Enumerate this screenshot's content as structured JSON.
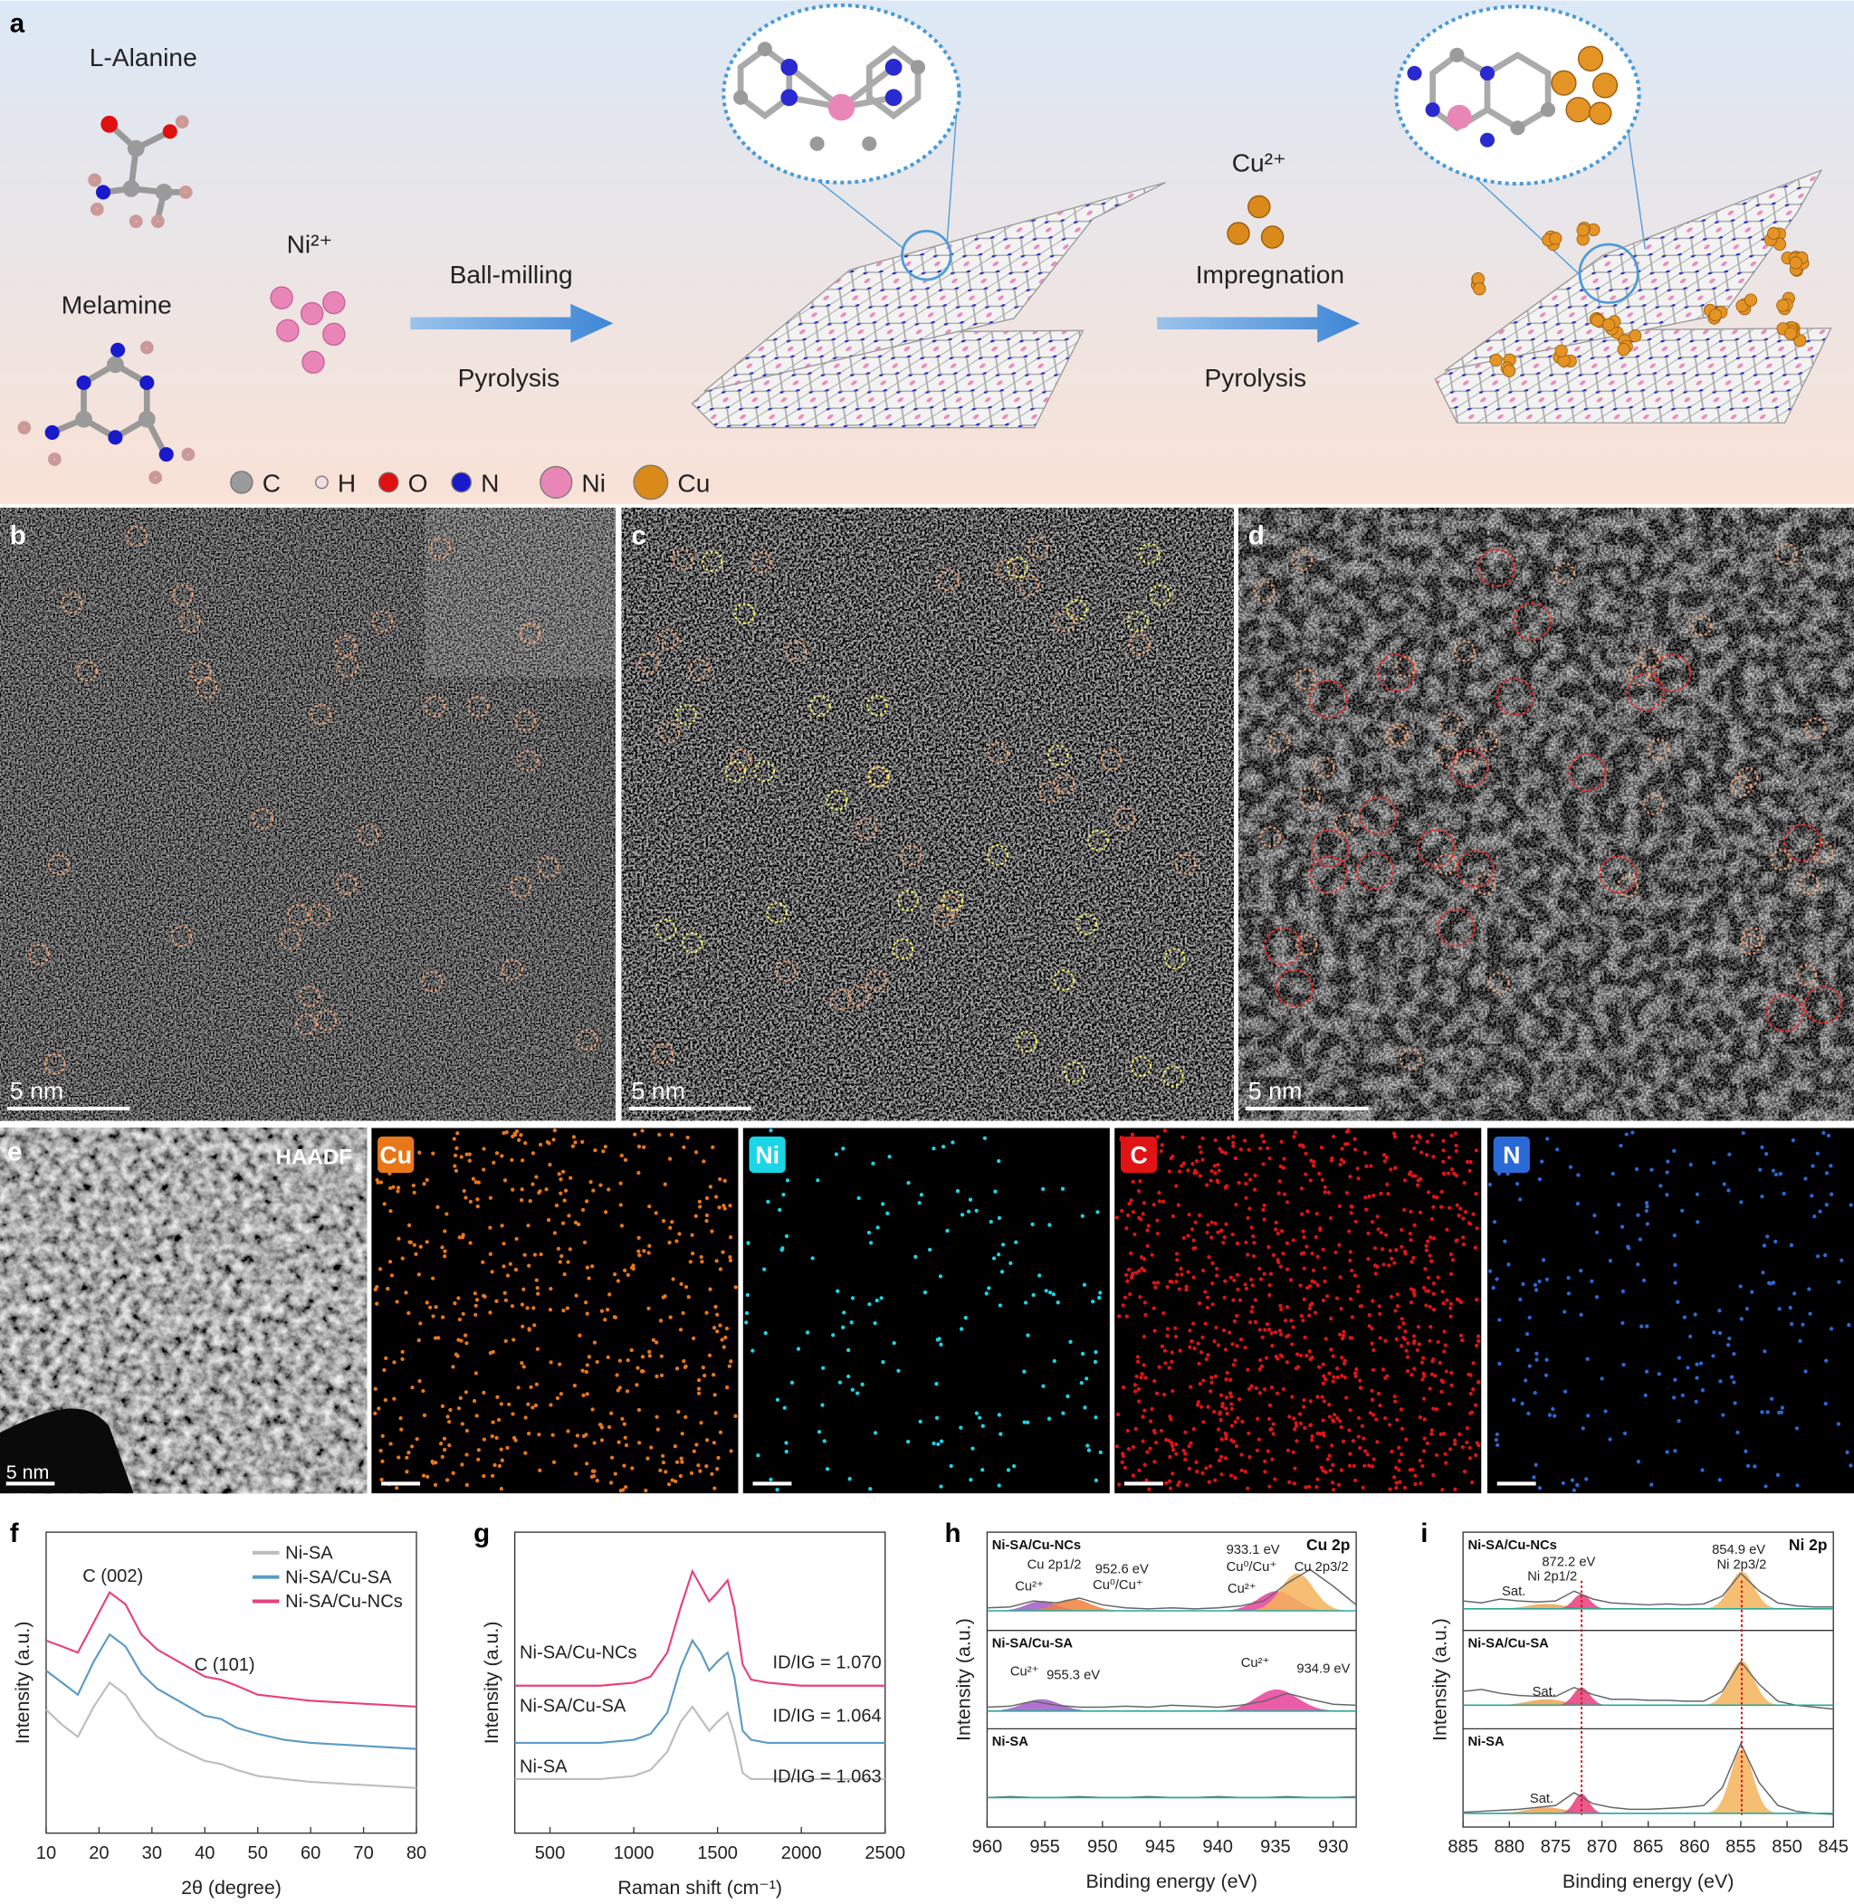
{
  "panel_a": {
    "label": "a",
    "precursors": [
      "L-Alanine",
      "Melamine"
    ],
    "metal1": "Ni²⁺",
    "step1": [
      "Ball-milling",
      "Pyrolysis"
    ],
    "metal2": "Cu²⁺",
    "step2": [
      "Impregnation",
      "Pyrolysis"
    ],
    "legend": [
      {
        "label": "C",
        "color": "#9a9a9a"
      },
      {
        "label": "H",
        "color": "#f3dbe2"
      },
      {
        "label": "O",
        "color": "#e01010"
      },
      {
        "label": "N",
        "color": "#1a1acc"
      },
      {
        "label": "Ni",
        "color": "#e986b8"
      },
      {
        "label": "Cu",
        "color": "#d98a1a"
      }
    ]
  },
  "micrographs": [
    {
      "label": "b",
      "scale_bar": "5 nm"
    },
    {
      "label": "c",
      "scale_bar": "5 nm"
    },
    {
      "label": "d",
      "scale_bar": "5 nm"
    }
  ],
  "mapping": {
    "label": "e",
    "scale_bar": "5 nm",
    "maps": [
      {
        "label": "HAADF"
      },
      {
        "label": "Cu",
        "color": "#e8771a"
      },
      {
        "label": "Ni",
        "color": "#1ad6e6"
      },
      {
        "label": "C",
        "color": "#e01414"
      },
      {
        "label": "N",
        "color": "#2a6ad6"
      }
    ]
  },
  "chart_data": [
    {
      "label": "f",
      "type": "line",
      "xlabel": "2θ (degree)",
      "ylabel": "Intensity (a.u.)",
      "xlim": [
        10,
        80
      ],
      "xticks": [
        10,
        20,
        30,
        40,
        50,
        60,
        70,
        80
      ],
      "ylim": [
        0,
        100
      ],
      "legend": "upper right",
      "x": [
        10,
        13,
        16,
        19,
        22,
        25,
        28,
        31,
        35,
        40,
        43,
        46,
        50,
        55,
        60,
        70,
        80
      ],
      "series": [
        {
          "name": "Ni-SA",
          "color": "#bdbdbd",
          "values": [
            41,
            36,
            32,
            42,
            50,
            46,
            38,
            32,
            28,
            24,
            23,
            21,
            19,
            18,
            17,
            16,
            15
          ]
        },
        {
          "name": "Ni-SA/Cu-SA",
          "color": "#5b9bc4",
          "values": [
            54,
            50,
            46,
            57,
            66,
            62,
            53,
            48,
            44,
            39,
            38,
            35,
            33,
            31,
            30,
            29,
            28
          ]
        },
        {
          "name": "Ni-SA/Cu-NCs",
          "color": "#e8407f",
          "values": [
            64,
            62,
            60,
            70,
            80,
            76,
            66,
            61,
            57,
            52,
            51,
            49,
            46,
            45,
            44,
            43,
            42
          ]
        }
      ],
      "annotations": [
        "C (002)",
        "C (101)"
      ]
    },
    {
      "label": "g",
      "type": "line",
      "xlabel": "Raman shift (cm⁻¹)",
      "ylabel": "Intensity (a.u.)",
      "xlim": [
        290,
        2500
      ],
      "xticks": [
        500,
        1000,
        1500,
        2000,
        2500
      ],
      "ylim": [
        0,
        100
      ],
      "x": [
        290,
        500,
        800,
        1000,
        1100,
        1200,
        1280,
        1350,
        1400,
        1450,
        1500,
        1560,
        1600,
        1650,
        1700,
        1800,
        2000,
        2200,
        2500
      ],
      "series": [
        {
          "name": "Ni-SA",
          "color": "#bdbdbd",
          "annotation": "ID/IG = 1.063",
          "values": [
            18,
            18,
            18,
            19,
            21,
            27,
            37,
            42,
            38,
            34,
            37,
            40,
            33,
            20,
            18,
            18,
            18,
            18,
            18
          ]
        },
        {
          "name": "Ni-SA/Cu-SA",
          "color": "#5b9bc4",
          "annotation": "ID/IG = 1.064",
          "values": [
            30,
            30,
            30,
            31,
            33,
            40,
            55,
            64,
            60,
            54,
            57,
            60,
            52,
            34,
            31,
            30,
            30,
            30,
            30
          ]
        },
        {
          "name": "Ni-SA/Cu-NCs",
          "color": "#e8407f",
          "annotation": "ID/IG = 1.070",
          "values": [
            49,
            49,
            49,
            50,
            52,
            60,
            75,
            87,
            82,
            77,
            80,
            84,
            75,
            56,
            51,
            50,
            49,
            49,
            49
          ]
        }
      ]
    },
    {
      "label": "h",
      "type": "xps",
      "title": "Cu 2p",
      "xlabel": "Binding energy (eV)",
      "ylabel": "Intensity (a.u.)",
      "xlim": [
        960,
        928
      ],
      "xticks": [
        960,
        955,
        950,
        945,
        940,
        935,
        930
      ],
      "ylim": [
        0,
        100
      ],
      "color": "#666666",
      "baseline_color": "#2aa89a",
      "x": [
        960,
        958,
        956,
        954,
        952,
        950,
        948,
        946,
        944,
        942,
        940,
        938,
        936,
        934,
        932,
        930,
        928
      ],
      "panels": [
        {
          "name": "Ni-SA/Cu-NCs",
          "baseline": 20,
          "values": [
            23,
            24,
            30,
            28,
            33,
            26,
            23,
            22,
            23,
            22,
            23,
            25,
            30,
            48,
            62,
            45,
            26
          ],
          "fits": [
            {
              "center": 955.3,
              "height": 10,
              "width": 1.3,
              "color": "#a05cc8"
            },
            {
              "center": 952.6,
              "height": 12,
              "width": 1.5,
              "color": "#f08040"
            },
            {
              "center": 934.9,
              "height": 20,
              "width": 1.6,
              "color": "#e8409a"
            },
            {
              "center": 933.1,
              "height": 38,
              "width": 1.4,
              "color": "#f5b35a"
            }
          ],
          "annotations": [
            "933.1 eV",
            "Cu⁰/Cu⁺",
            "Cu 2p3/2",
            "Cu 2p1/2",
            "952.6 eV",
            "Cu⁰/Cu⁺",
            "Cu²⁺",
            "Cu²⁺"
          ]
        },
        {
          "name": "Ni-SA/Cu-SA",
          "baseline": 18,
          "values": [
            22,
            23,
            28,
            24,
            22,
            22,
            23,
            22,
            24,
            23,
            22,
            24,
            28,
            36,
            30,
            25,
            24
          ],
          "fits": [
            {
              "center": 955.3,
              "height": 12,
              "width": 1.6,
              "color": "#a05cc8"
            },
            {
              "center": 934.9,
              "height": 22,
              "width": 1.8,
              "color": "#e8409a"
            }
          ],
          "annotations": [
            "Cu²⁺",
            "955.3 eV",
            "Cu²⁺",
            "934.9 eV"
          ]
        },
        {
          "name": "Ni-SA",
          "baseline": 30,
          "values": [
            30,
            31,
            30,
            30,
            31,
            30,
            30,
            31,
            30,
            30,
            31,
            30,
            30,
            31,
            30,
            30,
            31
          ],
          "fits": [],
          "annotations": []
        }
      ]
    },
    {
      "label": "i",
      "type": "xps",
      "title": "Ni 2p",
      "xlabel": "Binding energy (eV)",
      "ylabel": "Intensity (a.u.)",
      "xlim": [
        885,
        845
      ],
      "xticks": [
        885,
        880,
        875,
        870,
        865,
        860,
        855,
        850,
        845
      ],
      "ylim": [
        0,
        100
      ],
      "color": "#666666",
      "baseline_color": "#2aa89a",
      "ref_lines": [
        872.2,
        854.9
      ],
      "ref_color": "#e01010",
      "x": [
        885,
        883,
        881,
        879,
        877,
        875,
        873,
        871,
        869,
        867,
        865,
        863,
        861,
        859,
        857,
        855,
        853,
        851,
        849,
        847,
        845
      ],
      "panels": [
        {
          "name": "Ni-SA/Cu-NCs",
          "baseline": 22,
          "values": [
            30,
            28,
            32,
            30,
            29,
            30,
            40,
            32,
            28,
            27,
            26,
            27,
            26,
            27,
            35,
            58,
            40,
            28,
            25,
            24,
            24
          ],
          "fits": [
            {
              "center": 876,
              "height": 5,
              "width": 2,
              "color": "#f0a050"
            },
            {
              "center": 872.2,
              "height": 15,
              "width": 0.9,
              "color": "#e83c7a"
            },
            {
              "center": 854.9,
              "height": 38,
              "width": 1.3,
              "color": "#f5b35a"
            }
          ],
          "annotations": [
            "872.2 eV",
            "Ni 2p1/2",
            "854.9 eV",
            "Ni 2p3/2",
            "Sat."
          ]
        },
        {
          "name": "Ni-SA/Cu-SA",
          "baseline": 24,
          "values": [
            38,
            40,
            36,
            34,
            33,
            33,
            42,
            35,
            30,
            30,
            29,
            29,
            28,
            28,
            38,
            68,
            45,
            28,
            24,
            22,
            20
          ],
          "fits": [
            {
              "center": 876,
              "height": 6,
              "width": 2,
              "color": "#f0a050"
            },
            {
              "center": 872.2,
              "height": 18,
              "width": 0.9,
              "color": "#e83c7a"
            },
            {
              "center": 854.9,
              "height": 45,
              "width": 1.3,
              "color": "#f5b35a"
            }
          ],
          "annotations": [
            "Sat."
          ]
        },
        {
          "name": "Ni-SA",
          "baseline": 14,
          "values": [
            15,
            16,
            17,
            18,
            20,
            22,
            35,
            24,
            20,
            18,
            18,
            19,
            20,
            22,
            40,
            85,
            45,
            22,
            16,
            14,
            13
          ],
          "fits": [
            {
              "center": 876,
              "height": 6,
              "width": 2,
              "color": "#f0a050"
            },
            {
              "center": 872.2,
              "height": 20,
              "width": 0.8,
              "color": "#e83c7a"
            },
            {
              "center": 854.9,
              "height": 65,
              "width": 1.2,
              "color": "#f5b35a"
            }
          ],
          "annotations": [
            "Sat."
          ]
        }
      ]
    }
  ]
}
